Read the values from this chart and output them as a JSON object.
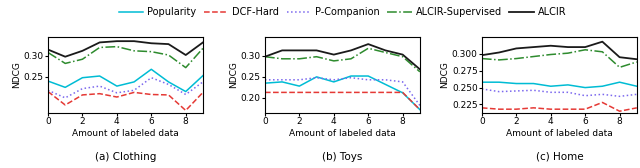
{
  "x": [
    0,
    1,
    2,
    3,
    4,
    5,
    6,
    7,
    8,
    9
  ],
  "clothing": {
    "popularity": [
      0.24,
      0.225,
      0.248,
      0.252,
      0.228,
      0.238,
      0.268,
      0.238,
      0.215,
      0.253
    ],
    "dcf_hard": [
      0.215,
      0.183,
      0.207,
      0.21,
      0.202,
      0.213,
      0.208,
      0.207,
      0.17,
      0.213
    ],
    "p_companion": [
      0.218,
      0.2,
      0.222,
      0.228,
      0.212,
      0.218,
      0.248,
      0.232,
      0.208,
      0.238
    ],
    "alcir_supervised": [
      0.308,
      0.282,
      0.292,
      0.32,
      0.322,
      0.312,
      0.31,
      0.302,
      0.272,
      0.318
    ],
    "alcir": [
      0.315,
      0.298,
      0.312,
      0.332,
      0.335,
      0.335,
      0.33,
      0.328,
      0.302,
      0.332
    ],
    "ylabel": "NDCG",
    "ylim": [
      0.165,
      0.345
    ],
    "yticks": [
      0.25,
      0.3
    ],
    "title": "(a) Clothing"
  },
  "toys": {
    "popularity": [
      0.235,
      0.238,
      0.228,
      0.25,
      0.238,
      0.252,
      0.252,
      0.232,
      0.212,
      0.172
    ],
    "dcf_hard": [
      0.213,
      0.213,
      0.213,
      0.213,
      0.213,
      0.213,
      0.213,
      0.213,
      0.213,
      0.172
    ],
    "p_companion": [
      0.243,
      0.243,
      0.243,
      0.248,
      0.243,
      0.248,
      0.243,
      0.243,
      0.238,
      0.182
    ],
    "alcir_supervised": [
      0.298,
      0.293,
      0.293,
      0.298,
      0.288,
      0.293,
      0.318,
      0.308,
      0.298,
      0.262
    ],
    "alcir": [
      0.298,
      0.313,
      0.313,
      0.313,
      0.303,
      0.313,
      0.328,
      0.313,
      0.303,
      0.268
    ],
    "ylabel": "NDCG",
    "ylim": [
      0.165,
      0.345
    ],
    "yticks": [
      0.2,
      0.25,
      0.3
    ],
    "title": "(b) Toys"
  },
  "home": {
    "popularity": [
      0.258,
      0.258,
      0.256,
      0.256,
      0.252,
      0.254,
      0.25,
      0.252,
      0.258,
      0.252
    ],
    "dcf_hard": [
      0.22,
      0.218,
      0.218,
      0.22,
      0.218,
      0.218,
      0.218,
      0.228,
      0.215,
      0.22
    ],
    "p_companion": [
      0.248,
      0.244,
      0.245,
      0.246,
      0.243,
      0.243,
      0.238,
      0.24,
      0.237,
      0.24
    ],
    "alcir_supervised": [
      0.293,
      0.291,
      0.293,
      0.296,
      0.299,
      0.301,
      0.306,
      0.303,
      0.28,
      0.288
    ],
    "alcir": [
      0.298,
      0.302,
      0.308,
      0.31,
      0.312,
      0.31,
      0.31,
      0.318,
      0.295,
      0.292
    ],
    "ylabel": "NDCG",
    "ylim": [
      0.213,
      0.325
    ],
    "yticks": [
      0.225,
      0.25,
      0.275,
      0.3
    ],
    "title": "(c) Home"
  },
  "colors": {
    "popularity": "#00bcd4",
    "dcf_hard": "#e53935",
    "p_companion": "#7b68ee",
    "alcir_supervised": "#2e8b2e",
    "alcir": "#1a1a1a"
  },
  "legend_labels": [
    "Popularity",
    "DCF-Hard",
    "P-Companion",
    "ALCIR-Supervised",
    "ALCIR"
  ],
  "xlabel": "Amount of labeled data"
}
